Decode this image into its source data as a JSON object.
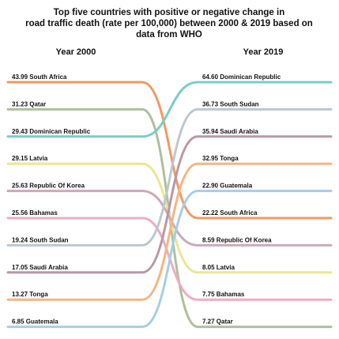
{
  "chart_data": {
    "type": "slope",
    "title_lines": [
      "Top five countries with positive or negative change in",
      "road traffic death (rate per 100,000) between 2000 & 2019 based on",
      "data from WHO"
    ],
    "left_header": "Year 2000",
    "right_header": "Year 2019",
    "series": [
      {
        "name": "South Africa",
        "v2000": 43.99,
        "v2019": 22.22,
        "color": "#ef9a62"
      },
      {
        "name": "Qatar",
        "v2000": 31.23,
        "v2019": 7.27,
        "color": "#aebf9b"
      },
      {
        "name": "Dominican Republic",
        "v2000": 29.43,
        "v2019": 64.6,
        "color": "#78cdc8"
      },
      {
        "name": "Latvia",
        "v2000": 29.15,
        "v2019": 8.05,
        "color": "#ece596"
      },
      {
        "name": "Republic Of Korea",
        "v2000": 25.63,
        "v2019": 8.59,
        "color": "#c9aabd"
      },
      {
        "name": "Bahamas",
        "v2000": 25.56,
        "v2019": 7.75,
        "color": "#eeacc2"
      },
      {
        "name": "South Sudan",
        "v2000": 19.24,
        "v2019": 36.73,
        "color": "#bcc8cf"
      },
      {
        "name": "Saudi Arabia",
        "v2000": 17.05,
        "v2019": 35.94,
        "color": "#b898a6"
      },
      {
        "name": "Tonga",
        "v2000": 13.27,
        "v2019": 32.95,
        "color": "#f3b682"
      },
      {
        "name": "Guatemala",
        "v2000": 6.85,
        "v2019": 22.9,
        "color": "#a7cde5"
      }
    ],
    "left_labels": [
      "43.99 South Africa",
      "31.23 Qatar",
      "29.43 Dominican Republic",
      "29.15 Latvia",
      "25.63 Republic Of Korea",
      "25.56 Bahamas",
      "19.24 South Sudan",
      "17.05 Saudi Arabia",
      "13.27 Tonga",
      "6.85 Guatemala"
    ],
    "right_labels": [
      "64.60 Dominican Republic",
      "36.73 South Sudan",
      "35.94 Saudi Arabia",
      "32.95 Tonga",
      "22.90 Guatemala",
      "22.22 South Africa",
      "8.59 Republic Of Korea",
      "8.05 Latvia",
      "7.75 Bahamas",
      "7.27 Qatar"
    ]
  }
}
